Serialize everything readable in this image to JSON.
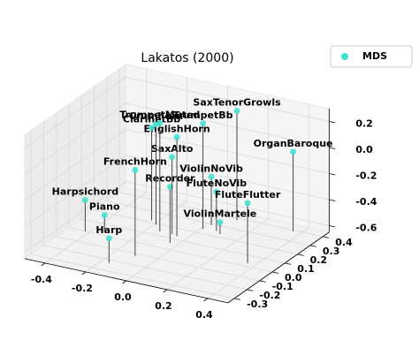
{
  "chart_data": {
    "type": "scatter3d",
    "title": "Lakatos (2000)",
    "series": [
      {
        "name": "MDS",
        "color": "#40e0d0",
        "labels": [
          "Harp",
          "Piano",
          "Harpsichord",
          "FrenchHorn",
          "Recorder",
          "SaxAlto",
          "EnglishHorn",
          "Crumhorn",
          "ClarinetBb",
          "TrumpetMuted",
          "TrumpetBb",
          "SaxTenorGrowls",
          "OrganBaroque",
          "ViolinNoVib",
          "FluteNoVib",
          "FluteFlutter",
          "ViolinMartele"
        ],
        "x": [
          -0.16,
          -0.35,
          -0.42,
          -0.1,
          -0.04,
          -0.08,
          -0.05,
          -0.19,
          -0.23,
          -0.14,
          0.01,
          0.09,
          0.36,
          0.02,
          0.07,
          0.36,
          0.1
        ],
        "y": [
          -0.23,
          0.04,
          0.0,
          -0.12,
          0.06,
          0.14,
          0.13,
          0.19,
          0.22,
          0.14,
          0.24,
          0.38,
          0.39,
          0.29,
          0.25,
          0.03,
          0.23
        ],
        "z": [
          -0.46,
          -0.53,
          -0.41,
          0.01,
          -0.22,
          -0.06,
          0.11,
          0.12,
          0.06,
          0.18,
          0.16,
          0.19,
          -0.04,
          -0.28,
          -0.35,
          -0.19,
          -0.56
        ]
      }
    ],
    "xlim": [
      -0.5,
      0.5
    ],
    "ylim": [
      -0.35,
      0.45
    ],
    "zlim": [
      -0.65,
      0.3
    ],
    "xticks": [
      -0.4,
      -0.2,
      {
        "value": 0,
        "label": "0.0"
      },
      0.2,
      0.4
    ],
    "yticks": [
      -0.3,
      -0.2,
      -0.1,
      {
        "value": 0,
        "label": "0.0"
      },
      0.1,
      0.2,
      0.3,
      0.4
    ],
    "zticks": [
      -0.6,
      -0.4,
      -0.2,
      {
        "value": 0,
        "label": "0.0"
      },
      0.2
    ],
    "legend": "upper right"
  }
}
